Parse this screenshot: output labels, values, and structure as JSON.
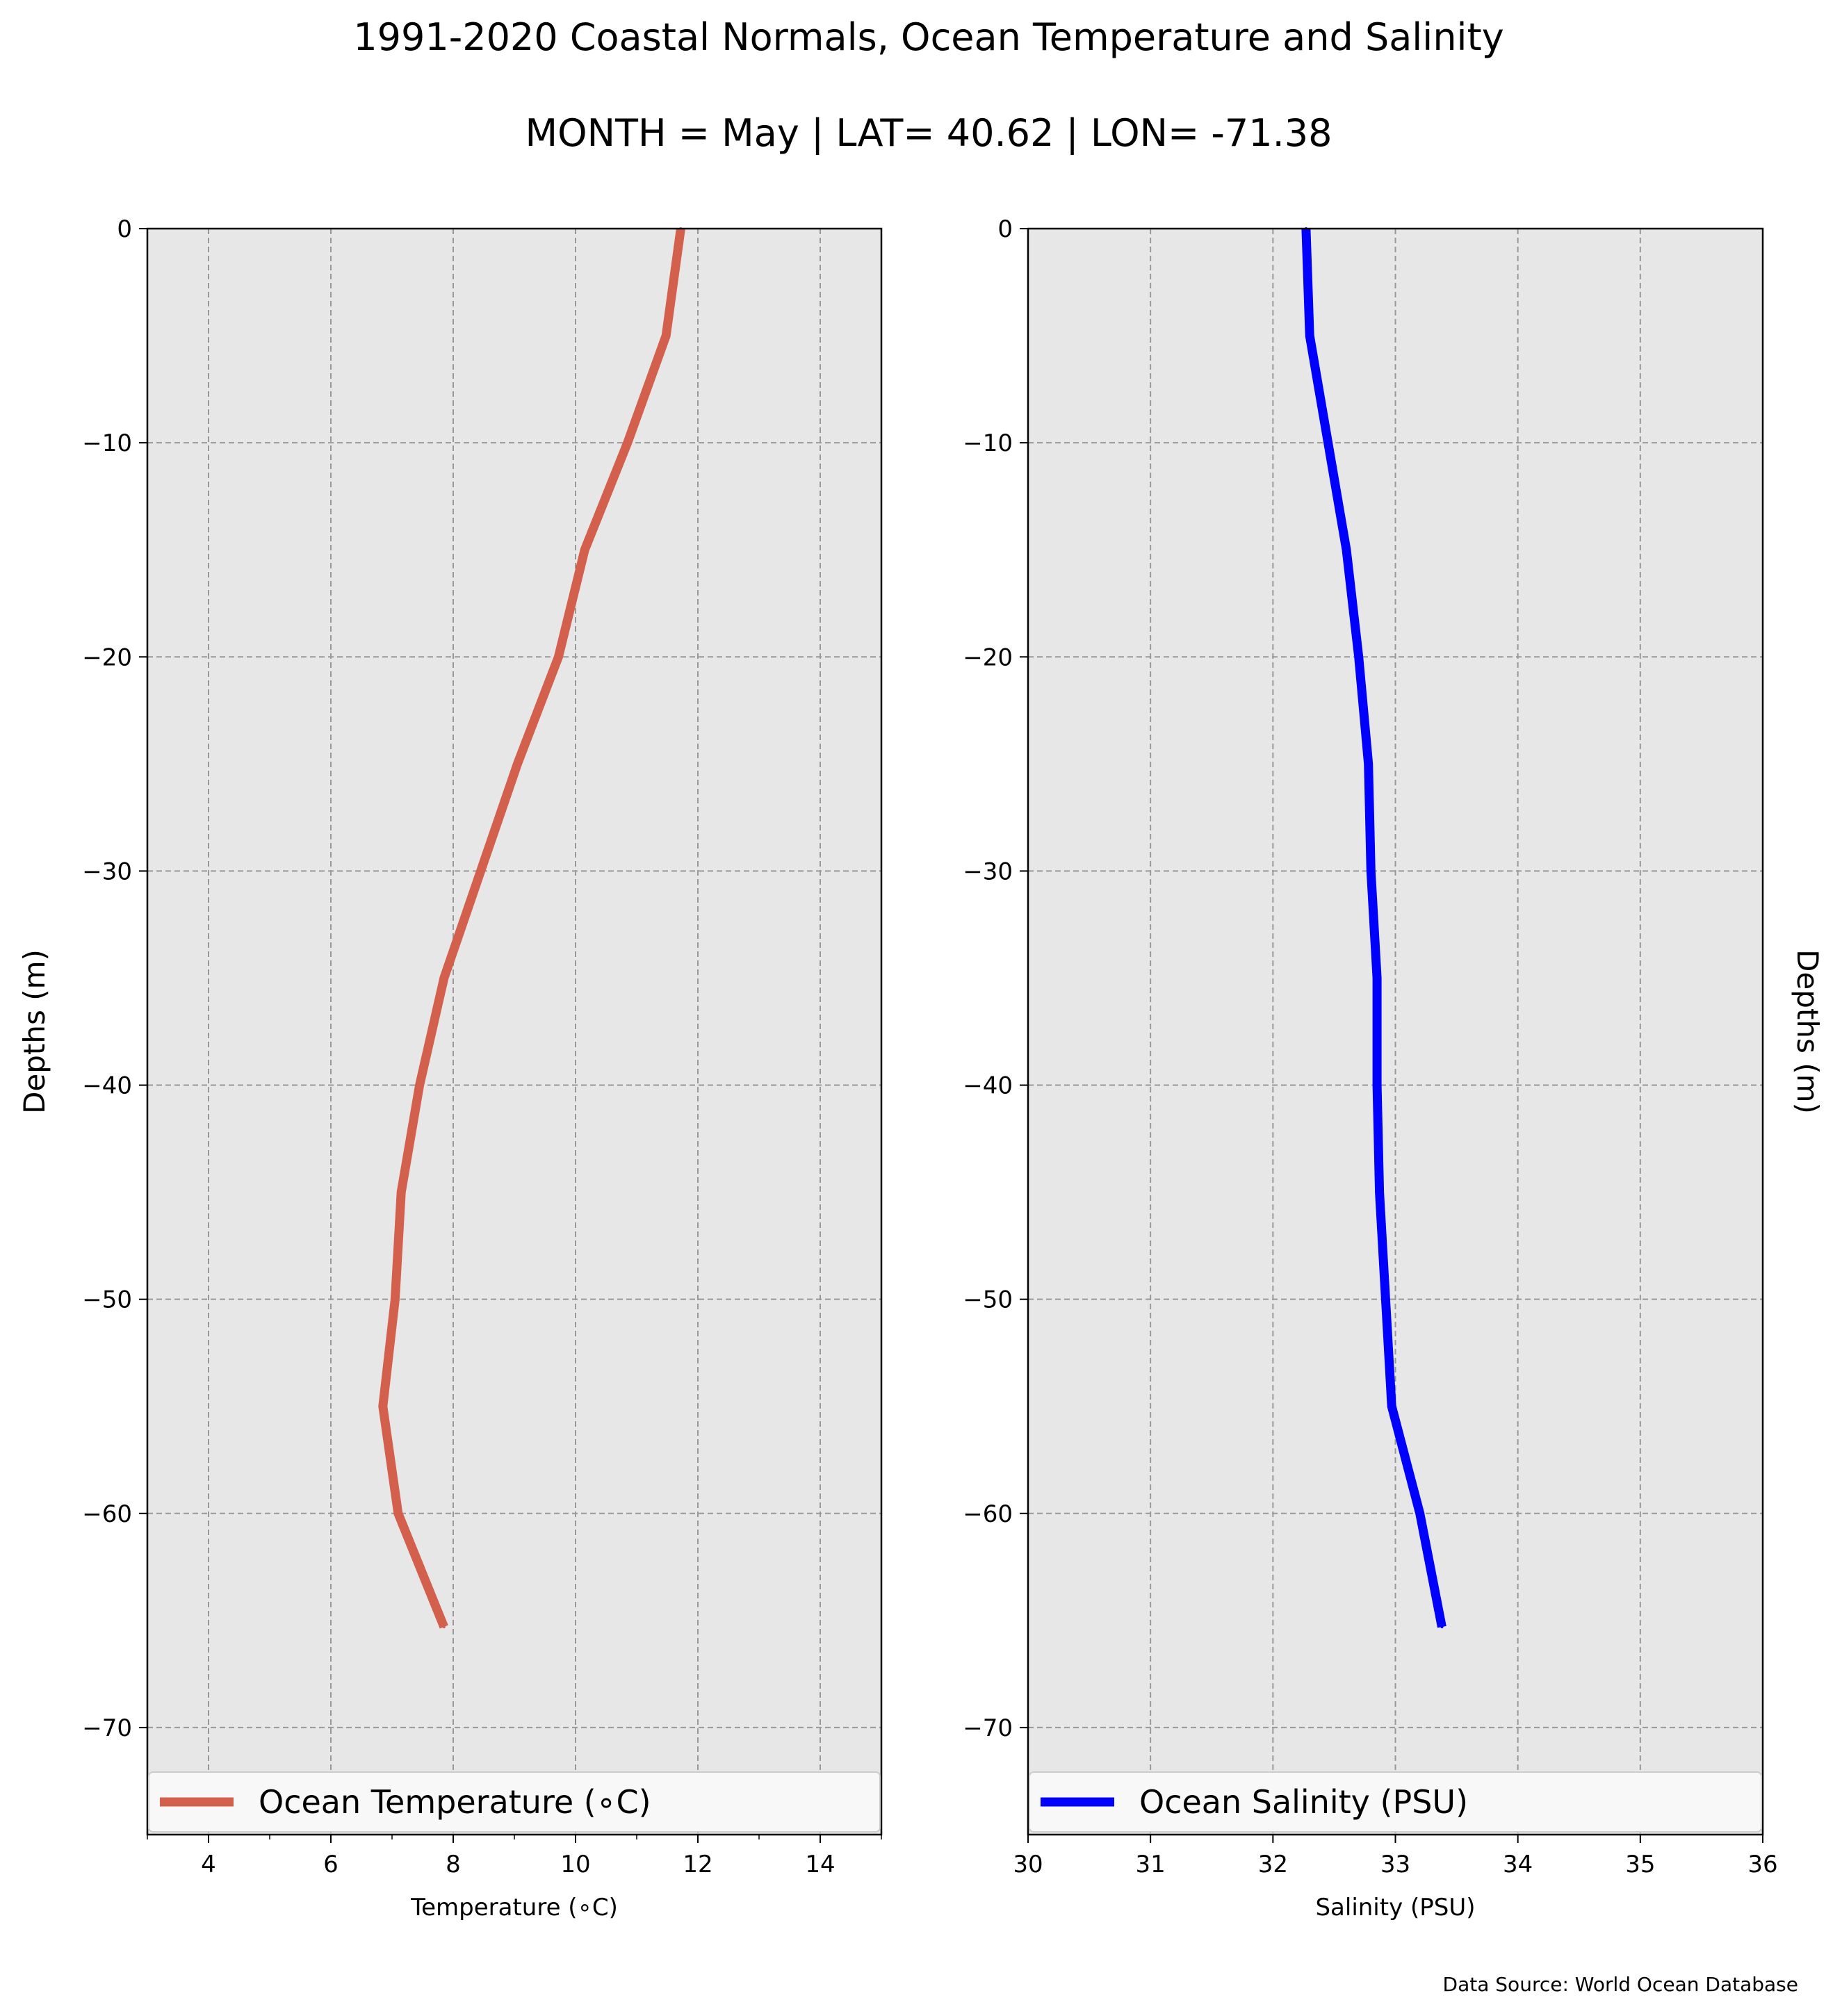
{
  "title": "1991-2020 Coastal Normals, Ocean Temperature and Salinity",
  "subtitle": "MONTH = May | LAT= 40.62 | LON= -71.38",
  "source": "Data Source: World Ocean Database",
  "colors": {
    "background": "#e7e7e7",
    "grid": "#999999",
    "temperature": "#d35f4d",
    "salinity": "#0000ff"
  },
  "chart_data": [
    {
      "type": "line",
      "xlabel": "Temperature (∘C)",
      "ylabel": "Depths (m)",
      "xlim": [
        3,
        15
      ],
      "ylim": [
        -75,
        0
      ],
      "xticks": [
        4,
        6,
        8,
        10,
        12,
        14
      ],
      "xtick_labels": [
        "4",
        "6",
        "8",
        "10",
        "12",
        "14"
      ],
      "yticks": [
        0,
        -10,
        -20,
        -30,
        -40,
        -50,
        -60,
        -70
      ],
      "ytick_labels": [
        "0",
        "−10",
        "−20",
        "−30",
        "−40",
        "−50",
        "−60",
        "−70"
      ],
      "grid": true,
      "ylabel_side": "left",
      "legend_position": "bottom",
      "series": [
        {
          "name": "Ocean Temperature (∘C)",
          "color": "#d35f4d",
          "x": [
            11.72,
            11.48,
            10.85,
            10.15,
            9.72,
            9.05,
            8.45,
            7.85,
            7.45,
            7.15,
            7.05,
            6.85,
            7.1,
            7.85
          ],
          "y": [
            0,
            -5,
            -10,
            -15,
            -20,
            -25,
            -30,
            -35,
            -40,
            -45,
            -50,
            -55,
            -60,
            -65.3
          ]
        }
      ]
    },
    {
      "type": "line",
      "xlabel": "Salinity (PSU)",
      "ylabel": "Depths (m)",
      "xlim": [
        30,
        36
      ],
      "ylim": [
        -75,
        0
      ],
      "xticks": [
        30,
        31,
        32,
        33,
        34,
        35,
        36
      ],
      "xtick_labels": [
        "30",
        "31",
        "32",
        "33",
        "34",
        "35",
        "36"
      ],
      "yticks": [
        0,
        -10,
        -20,
        -30,
        -40,
        -50,
        -60,
        -70
      ],
      "ytick_labels": [
        "0",
        "−10",
        "−20",
        "−30",
        "−40",
        "−50",
        "−60",
        "−70"
      ],
      "grid": true,
      "ylabel_side": "right",
      "legend_position": "bottom",
      "series": [
        {
          "name": "Ocean Salinity (PSU)",
          "color": "#0000ff",
          "x": [
            32.27,
            32.3,
            32.45,
            32.6,
            32.7,
            32.78,
            32.8,
            32.85,
            32.85,
            32.87,
            32.92,
            32.97,
            33.2,
            33.38
          ],
          "y": [
            0,
            -5,
            -10,
            -15,
            -20,
            -25,
            -30,
            -35,
            -40,
            -45,
            -50,
            -55,
            -60,
            -65.3
          ]
        }
      ]
    }
  ]
}
